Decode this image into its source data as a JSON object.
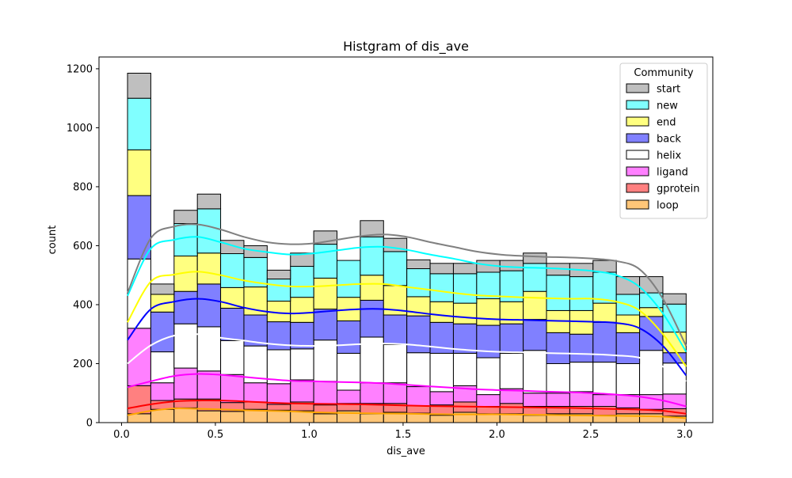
{
  "chart_data": {
    "type": "bar",
    "subtype": "stacked-histogram-with-kde",
    "title": "Histgram of dis_ave",
    "xlabel": "dis_ave",
    "ylabel": "count",
    "xlim": [
      -0.12,
      3.15
    ],
    "ylim": [
      0,
      1240
    ],
    "xticks": [
      0.0,
      0.5,
      1.0,
      1.5,
      2.0,
      2.5,
      3.0
    ],
    "xtick_labels": [
      "0.0",
      "0.5",
      "1.0",
      "1.5",
      "2.0",
      "2.5",
      "3.0"
    ],
    "yticks": [
      0,
      200,
      400,
      600,
      800,
      1000,
      1200
    ],
    "ytick_labels": [
      "0",
      "200",
      "400",
      "600",
      "800",
      "1000",
      "1200"
    ],
    "grid": false,
    "legend": {
      "title": "Community",
      "placement": "top-right"
    },
    "bin_edges": [
      0.032,
      0.156,
      0.28,
      0.404,
      0.528,
      0.652,
      0.776,
      0.9,
      1.024,
      1.148,
      1.272,
      1.396,
      1.52,
      1.644,
      1.768,
      1.892,
      2.016,
      2.14,
      2.264,
      2.388,
      2.512,
      2.636,
      2.76,
      2.884,
      3.008
    ],
    "series": [
      {
        "name": "loop",
        "color": "#ffc678",
        "line_color": "#ffa500",
        "values": [
          30,
          45,
          50,
          40,
          38,
          45,
          42,
          40,
          30,
          40,
          30,
          35,
          32,
          25,
          35,
          30,
          30,
          25,
          30,
          30,
          25,
          30,
          30,
          22
        ],
        "kde": [
          25,
          40,
          48,
          47,
          45,
          42,
          40,
          38,
          35,
          33,
          32,
          31,
          30,
          29,
          28,
          28,
          28,
          27,
          26,
          25,
          24,
          23,
          22,
          20,
          15
        ]
      },
      {
        "name": "gprotein",
        "color": "#ff8080",
        "line_color": "#ff0000",
        "values": [
          95,
          30,
          30,
          40,
          30,
          25,
          20,
          30,
          30,
          25,
          35,
          30,
          25,
          35,
          35,
          25,
          35,
          30,
          25,
          25,
          30,
          20,
          15,
          25
        ],
        "kde": [
          48,
          62,
          72,
          75,
          75,
          72,
          68,
          65,
          64,
          63,
          62,
          60,
          58,
          56,
          55,
          54,
          53,
          52,
          51,
          50,
          48,
          46,
          44,
          40,
          30
        ]
      },
      {
        "name": "ligand",
        "color": "#ff80ff",
        "line_color": "#ff00ff",
        "values": [
          195,
          60,
          105,
          95,
          95,
          65,
          70,
          75,
          80,
          45,
          70,
          70,
          65,
          45,
          55,
          40,
          50,
          45,
          45,
          50,
          40,
          45,
          50,
          50
        ],
        "kde": [
          120,
          140,
          158,
          165,
          162,
          155,
          148,
          142,
          140,
          138,
          136,
          133,
          128,
          123,
          118,
          113,
          110,
          108,
          105,
          103,
          100,
          95,
          88,
          75,
          55
        ]
      },
      {
        "name": "helix",
        "color": "#ffffff",
        "line_color": "#ffffff",
        "values": [
          235,
          105,
          150,
          150,
          115,
          125,
          115,
          105,
          140,
          125,
          155,
          130,
          115,
          130,
          110,
          125,
          120,
          145,
          100,
          100,
          110,
          105,
          150,
          105
        ],
        "kde": [
          200,
          262,
          295,
          300,
          288,
          278,
          268,
          262,
          260,
          262,
          266,
          268,
          265,
          258,
          250,
          244,
          240,
          238,
          236,
          234,
          232,
          228,
          220,
          190,
          140
        ]
      },
      {
        "name": "back",
        "color": "#8080ff",
        "line_color": "#0000ff",
        "values": [
          215,
          135,
          110,
          145,
          110,
          105,
          95,
          90,
          105,
          110,
          125,
          100,
          125,
          105,
          100,
          110,
          100,
          105,
          105,
          95,
          135,
          105,
          115,
          35
        ],
        "kde": [
          280,
          385,
          410,
          420,
          410,
          390,
          376,
          370,
          374,
          380,
          385,
          385,
          378,
          368,
          360,
          354,
          350,
          348,
          346,
          344,
          342,
          338,
          320,
          260,
          160
        ]
      },
      {
        "name": "end",
        "color": "#ffff80",
        "line_color": "#ffff00",
        "values": [
          155,
          60,
          120,
          105,
          70,
          95,
          70,
          85,
          105,
          80,
          85,
          100,
          65,
          70,
          70,
          90,
          75,
          95,
          75,
          80,
          65,
          60,
          30,
          70
        ],
        "kde": [
          340,
          478,
          502,
          512,
          500,
          482,
          470,
          462,
          462,
          466,
          470,
          470,
          460,
          450,
          440,
          432,
          428,
          425,
          422,
          420,
          420,
          410,
          380,
          300,
          190
        ]
      },
      {
        "name": "new",
        "color": "#80ffff",
        "line_color": "#00ffff",
        "values": [
          175,
          0,
          110,
          150,
          115,
          100,
          75,
          105,
          115,
          125,
          130,
          115,
          95,
          95,
          100,
          90,
          105,
          95,
          120,
          115,
          105,
          70,
          50,
          95
        ],
        "kde": [
          430,
          590,
          620,
          630,
          612,
          590,
          578,
          570,
          574,
          584,
          594,
          596,
          586,
          570,
          556,
          540,
          530,
          526,
          524,
          520,
          514,
          500,
          460,
          370,
          240
        ]
      },
      {
        "name": "start",
        "color": "#bfbfbf",
        "line_color": "#808080",
        "values": [
          85,
          35,
          45,
          50,
          45,
          40,
          30,
          45,
          45,
          0,
          55,
          45,
          30,
          35,
          35,
          40,
          35,
          35,
          40,
          45,
          40,
          60,
          55,
          35
        ],
        "kde": [
          440,
          625,
          665,
          672,
          655,
          630,
          612,
          605,
          608,
          620,
          632,
          638,
          630,
          612,
          596,
          580,
          570,
          565,
          562,
          560,
          556,
          548,
          520,
          420,
          260
        ]
      }
    ]
  }
}
